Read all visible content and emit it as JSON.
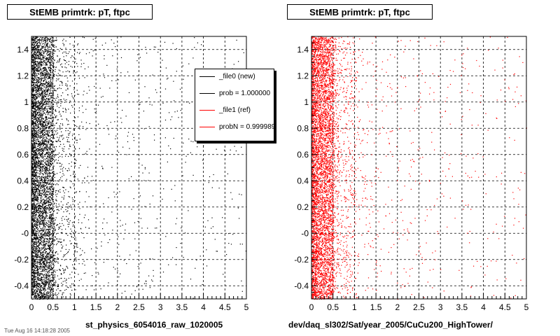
{
  "left_pad": {
    "title": "StEMB primtrk: pT, ftpc",
    "xlabel": "st_physics_6054016_raw_1020005",
    "legend": [
      {
        "label": "_file0 (new)",
        "color": "#000000"
      },
      {
        "label": "prob = 1.000000",
        "color": "#000000"
      },
      {
        "label": "_file1 (ref)",
        "color": "#ff0000"
      },
      {
        "label": "probN = 0.999989",
        "color": "#ff0000"
      }
    ]
  },
  "right_pad": {
    "title": "StEMB primtrk: pT, ftpc",
    "xlabel": "dev/daq_sl302/Sat/year_2005/CuCu200_HighTower/"
  },
  "footer": "Tue Aug 16 14:18:28 2005",
  "chart_data": [
    {
      "type": "scatter",
      "title": "StEMB primtrk: pT, ftpc",
      "xlabel": "st_physics_6054016_raw_1020005",
      "ylabel": "",
      "xlim": [
        0,
        5
      ],
      "ylim": [
        -0.5,
        1.5
      ],
      "x_ticks": [
        "0",
        "0.5",
        "1",
        "1.5",
        "2",
        "2.5",
        "3",
        "3.5",
        "4",
        "4.5",
        "5"
      ],
      "y_ticks": [
        "-0.4",
        "-0.2",
        "-0",
        "0.2",
        "0.4",
        "0.6",
        "0.8",
        "1",
        "1.2",
        "1.4"
      ],
      "grid": true,
      "series": [
        {
          "name": "_file0 (new)",
          "color": "#000000",
          "distribution": "dense at x 0-0.5, moderate 0.5-1, sparse 1-5; uniform in y -0.5 to 1.5"
        }
      ]
    },
    {
      "type": "scatter",
      "title": "StEMB primtrk: pT, ftpc",
      "xlabel": "dev/daq_sl302/Sat/year_2005/CuCu200_HighTower/",
      "ylabel": "",
      "xlim": [
        0,
        5
      ],
      "ylim": [
        -0.5,
        1.5
      ],
      "x_ticks": [
        "0",
        "0.5",
        "1",
        "1.5",
        "2",
        "2.5",
        "3",
        "3.5",
        "4",
        "4.5",
        "5"
      ],
      "y_ticks": [
        "-0.4",
        "-0.2",
        "-0",
        "0.2",
        "0.4",
        "0.6",
        "0.8",
        "1",
        "1.2",
        "1.4"
      ],
      "grid": true,
      "series": [
        {
          "name": "_file1 (ref)",
          "color": "#ff0000",
          "distribution": "dense at x 0-0.5, moderate 0.5-1, sparse 1-5; uniform in y -0.5 to 1.5"
        }
      ]
    }
  ]
}
